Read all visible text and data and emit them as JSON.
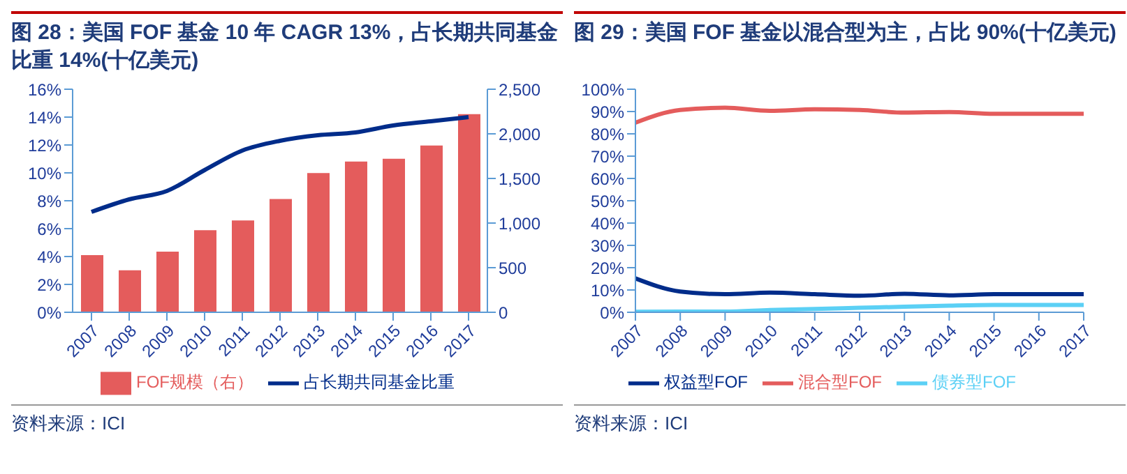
{
  "chart_data": [
    {
      "type": "bar",
      "title": "图 28：美国 FOF 基金 10 年 CAGR 13%，占长期共同基金比重 14%(十亿美元)",
      "categories": [
        "2007",
        "2008",
        "2009",
        "2010",
        "2011",
        "2012",
        "2013",
        "2014",
        "2015",
        "2016",
        "2017"
      ],
      "series": [
        {
          "name": "FOF规模（右）",
          "axis": "y2",
          "color": "#e45c5c",
          "values": [
            640,
            470,
            680,
            920,
            1030,
            1270,
            1560,
            1690,
            1720,
            1870,
            2220
          ]
        },
        {
          "name": "占长期共同基金比重",
          "type": "line",
          "color": "#002c8a",
          "values": [
            7.2,
            8.1,
            8.7,
            10.2,
            11.6,
            12.3,
            12.7,
            12.9,
            13.4,
            13.7,
            14
          ]
        }
      ],
      "ylim": [
        0,
        16
      ],
      "yticks": [
        {
          "value": 0,
          "label": "0%"
        },
        {
          "value": 2,
          "label": "2%"
        },
        {
          "value": 4,
          "label": "4%"
        },
        {
          "value": 6,
          "label": "6%"
        },
        {
          "value": 8,
          "label": "8%"
        },
        {
          "value": 10,
          "label": "10%"
        },
        {
          "value": 12,
          "label": "12%"
        },
        {
          "value": 14,
          "label": "14%"
        },
        {
          "value": 16,
          "label": "16%"
        }
      ],
      "y2lim": [
        0,
        2500
      ],
      "y2ticks": [
        0,
        500,
        {
          "value": 1000,
          "label": "1,000"
        },
        {
          "value": 1500,
          "label": "1,500"
        },
        {
          "value": 2000,
          "label": "2,000"
        },
        {
          "value": 2500,
          "label": "2,500"
        }
      ],
      "legend": "bottom",
      "annotations": [
        "资料来源：ICI"
      ]
    },
    {
      "type": "line",
      "title": "图 29：美国 FOF 基金以混合型为主，占比 90%(十亿美元)",
      "categories": [
        "2007",
        "2008",
        "2009",
        "2010",
        "2011",
        "2012",
        "2013",
        "2014",
        "2015",
        "2016",
        "2017"
      ],
      "series": [
        {
          "name": "权益型FOF",
          "color": "#002c8a",
          "values": [
            15.2,
            9.3,
            8.1,
            8.8,
            8.1,
            7.4,
            8.3,
            7.6,
            8.1,
            8.1,
            8.1
          ]
        },
        {
          "name": "混合型FOF",
          "color": "#e45c5c",
          "values": [
            85,
            90.7,
            91.7,
            90.3,
            91,
            90.7,
            89.5,
            89.8,
            89,
            89,
            89
          ]
        },
        {
          "name": "债券型FOF",
          "color": "#5bd0f5",
          "values": [
            0.2,
            0.3,
            0.3,
            1,
            1.5,
            2,
            2.5,
            3,
            3.3,
            3.3,
            3.3
          ]
        }
      ],
      "ylim": [
        0,
        100
      ],
      "yticks": [
        {
          "value": 0,
          "label": "0%"
        },
        {
          "value": 10,
          "label": "10%"
        },
        {
          "value": 20,
          "label": "20%"
        },
        {
          "value": 30,
          "label": "30%"
        },
        {
          "value": 40,
          "label": "40%"
        },
        {
          "value": 50,
          "label": "50%"
        },
        {
          "value": 60,
          "label": "60%"
        },
        {
          "value": 70,
          "label": "70%"
        },
        {
          "value": 80,
          "label": "80%"
        },
        {
          "value": 90,
          "label": "90%"
        },
        {
          "value": 100,
          "label": "100%"
        }
      ],
      "legend": "bottom",
      "annotations": [
        "资料来源：ICI"
      ]
    }
  ]
}
